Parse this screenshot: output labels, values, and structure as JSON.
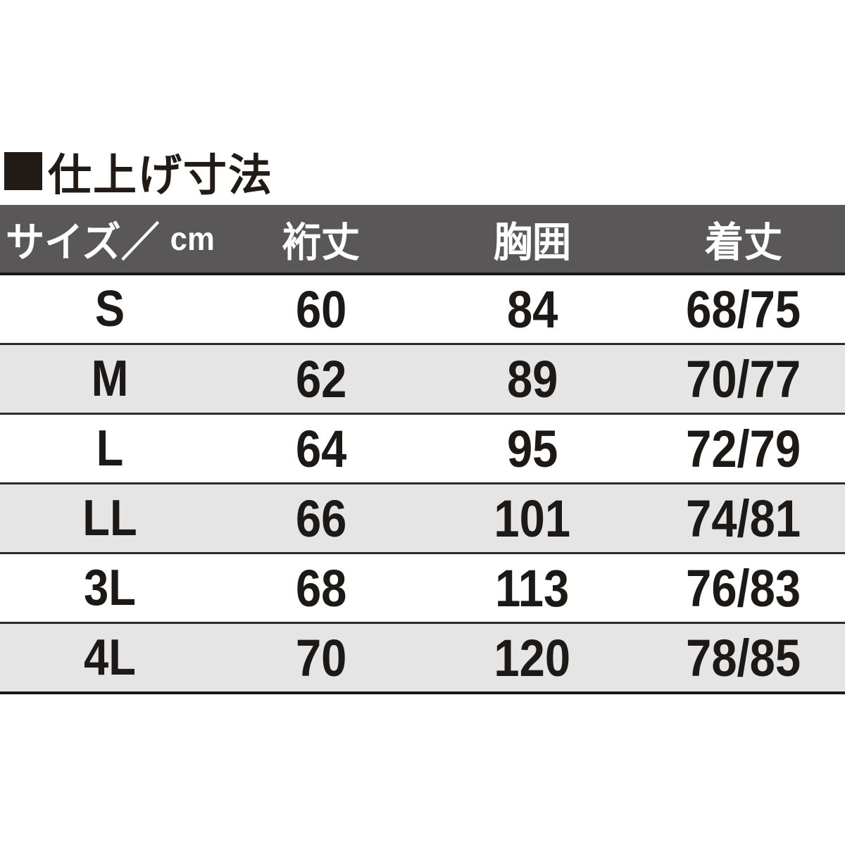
{
  "title": {
    "text": "仕上げ寸法"
  },
  "table": {
    "header": {
      "size_label": "サイズ／",
      "unit": "cm",
      "col_sleeve": "裄丈",
      "col_chest": "胸囲",
      "col_length": "着丈"
    },
    "columns": [
      "サイズ／cm",
      "裄丈",
      "胸囲",
      "着丈"
    ],
    "rows": [
      {
        "size": "S",
        "sleeve": "60",
        "chest": "84",
        "length": "68/75"
      },
      {
        "size": "M",
        "sleeve": "62",
        "chest": "89",
        "length": "70/77"
      },
      {
        "size": "L",
        "sleeve": "64",
        "chest": "95",
        "length": "72/79"
      },
      {
        "size": "LL",
        "sleeve": "66",
        "chest": "101",
        "length": "74/81"
      },
      {
        "size": "3L",
        "sleeve": "68",
        "chest": "113",
        "length": "76/83"
      },
      {
        "size": "4L",
        "sleeve": "70",
        "chest": "120",
        "length": "78/85"
      }
    ]
  },
  "colors": {
    "header_background": "#595757",
    "header_text": "#ffffff",
    "alt_row_background": "#e5e5e6",
    "row_background": "#ffffff",
    "rule_line": "#2f2b2a",
    "text": "#221a15"
  }
}
